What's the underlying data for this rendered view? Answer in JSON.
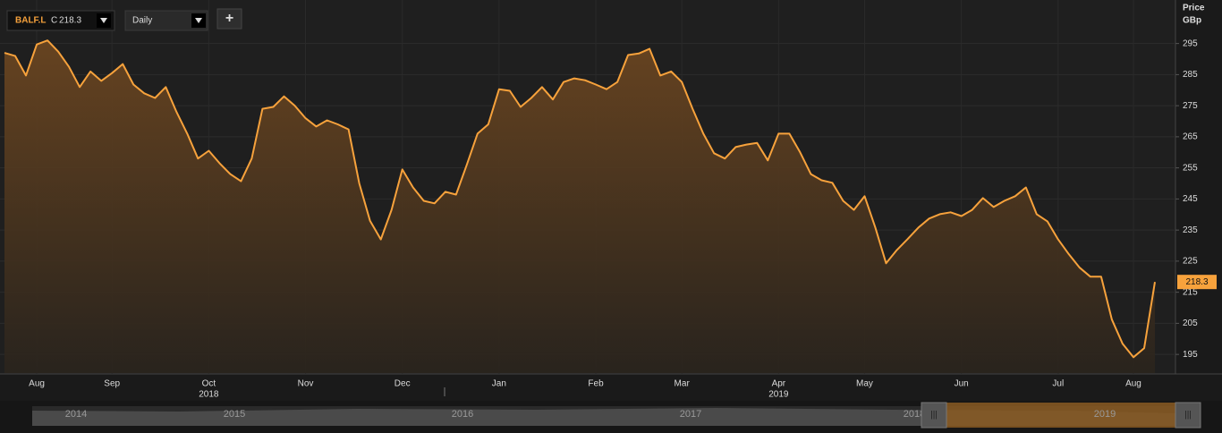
{
  "toolbar": {
    "symbol": "BALF.L",
    "close_label": "C",
    "interval": "Daily",
    "add_button": "+"
  },
  "axis_header": {
    "line1": "Price",
    "line2": "GBp"
  },
  "chart_data": {
    "type": "area",
    "categories": [
      null,
      null,
      null,
      "Aug",
      null,
      null,
      null,
      null,
      null,
      null,
      "Sep",
      null,
      null,
      null,
      null,
      null,
      null,
      null,
      null,
      "Oct",
      null,
      null,
      null,
      null,
      null,
      null,
      null,
      null,
      "Nov",
      null,
      null,
      null,
      null,
      null,
      null,
      null,
      null,
      "Dec",
      null,
      null,
      null,
      null,
      null,
      null,
      null,
      null,
      "Jan",
      null,
      null,
      null,
      null,
      null,
      null,
      null,
      null,
      "Feb",
      null,
      null,
      null,
      null,
      null,
      null,
      null,
      "Mar",
      null,
      null,
      null,
      null,
      null,
      null,
      null,
      null,
      "Apr",
      null,
      null,
      null,
      null,
      null,
      null,
      null,
      "May",
      null,
      null,
      null,
      null,
      null,
      null,
      null,
      null,
      "Jun",
      null,
      null,
      null,
      null,
      null,
      null,
      null,
      null,
      "Jul",
      null,
      null,
      null,
      null,
      null,
      null,
      "Aug",
      null,
      null
    ],
    "year_labels": [
      null,
      null,
      null,
      null,
      null,
      null,
      null,
      null,
      null,
      null,
      null,
      null,
      null,
      null,
      null,
      null,
      null,
      null,
      null,
      "2018",
      null,
      null,
      null,
      null,
      null,
      null,
      null,
      null,
      null,
      null,
      null,
      null,
      null,
      null,
      null,
      null,
      null,
      null,
      null,
      null,
      null,
      null,
      null,
      null,
      null,
      null,
      null,
      null,
      null,
      null,
      null,
      null,
      null,
      null,
      null,
      null,
      null,
      null,
      null,
      null,
      null,
      null,
      null,
      null,
      null,
      null,
      null,
      null,
      null,
      null,
      null,
      null,
      "2019",
      null,
      null,
      null,
      null,
      null,
      null,
      null,
      null,
      null,
      null,
      null,
      null,
      null,
      null,
      null,
      null,
      null,
      null,
      null,
      null,
      null,
      null,
      null,
      null,
      null,
      null,
      null,
      null,
      null,
      null,
      null,
      null,
      null,
      null,
      null
    ],
    "series": [
      {
        "name": "BALF.L",
        "color": "#f7a23c",
        "values": [
          292,
          291,
          284.7,
          294.7,
          296,
          292.4,
          287.5,
          281,
          286,
          283,
          285.5,
          288.4,
          281.8,
          279,
          277.5,
          281,
          273,
          266,
          258,
          260.5,
          256.5,
          253,
          250.7,
          258,
          274,
          274.6,
          278,
          275,
          271,
          268.3,
          270.3,
          269,
          267.4,
          250,
          238,
          232,
          241.5,
          254.5,
          248.7,
          244.4,
          243.6,
          247.3,
          246.4,
          256,
          266,
          269,
          280.3,
          279.8,
          274.6,
          277.5,
          281,
          277,
          282.6,
          283.8,
          283.2,
          281.8,
          280.3,
          282.6,
          291.3,
          291.8,
          293.3,
          284.7,
          286,
          282.6,
          274,
          266,
          259.7,
          258,
          261.7,
          262.5,
          263,
          257.4,
          266,
          266,
          260,
          253,
          251,
          250.2,
          244.4,
          241.5,
          245.9,
          235.8,
          224.3,
          228.6,
          232.1,
          235.8,
          238.7,
          240.1,
          240.7,
          239.5,
          241.5,
          245.3,
          242.4,
          244.4,
          245.9,
          248.7,
          240.1,
          237.8,
          232,
          227.2,
          222.9,
          220,
          220,
          206.2,
          198.4,
          194.1,
          197,
          218.3
        ]
      }
    ],
    "ylim": [
      189,
      309
    ],
    "yticks": [
      195,
      205,
      215,
      225,
      235,
      245,
      255,
      265,
      275,
      285,
      295
    ],
    "grid": true
  },
  "navigator": {
    "years": [
      "2014",
      "2015",
      "2016",
      "2017",
      "2018",
      "2019"
    ]
  }
}
